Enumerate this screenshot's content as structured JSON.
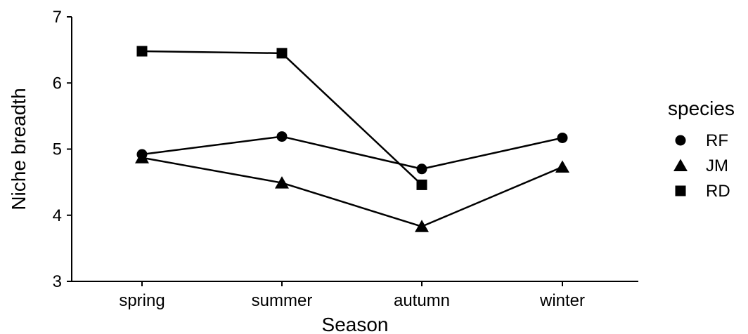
{
  "chart_data": {
    "type": "line",
    "title": "",
    "xlabel": "Season",
    "ylabel": "Niche breadth",
    "categories": [
      "spring",
      "summer",
      "autumn",
      "winter"
    ],
    "ylim": [
      3,
      7
    ],
    "yticks": [
      "3",
      "4",
      "5",
      "6",
      "7"
    ],
    "grid": false,
    "legend": {
      "title": "species",
      "position": "right"
    },
    "series": [
      {
        "name": "RF",
        "marker": "circle",
        "values": [
          4.92,
          5.19,
          4.7,
          5.17
        ]
      },
      {
        "name": "JM",
        "marker": "triangle",
        "values": [
          4.87,
          4.49,
          3.83,
          4.73
        ]
      },
      {
        "name": "RD",
        "marker": "square",
        "values": [
          6.48,
          6.45,
          4.46,
          null
        ]
      }
    ],
    "colors": {
      "line": "#000000",
      "marker": "#000000",
      "axis": "#000000"
    }
  }
}
